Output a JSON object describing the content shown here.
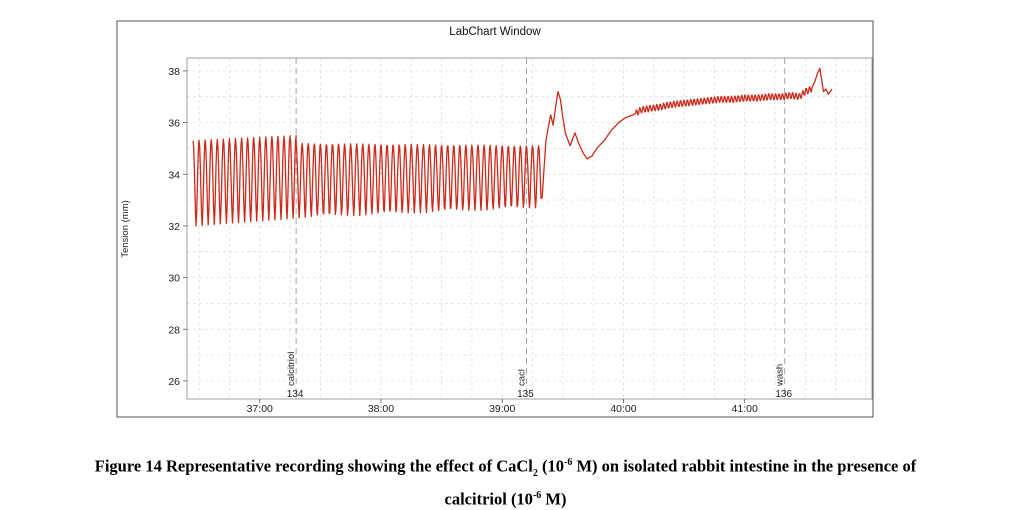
{
  "chart_data": {
    "type": "line",
    "window_title": "LabChart Window",
    "ylabel": "Tension (mm)",
    "xlabel": "",
    "ylim": [
      25.3,
      38.5
    ],
    "xlim": [
      36.4,
      42.05
    ],
    "yticks": [
      26,
      28,
      30,
      32,
      34,
      36,
      38
    ],
    "xticks": [
      37,
      38,
      39,
      40,
      41
    ],
    "xtick_labels": [
      "37:00",
      "38:00",
      "39:00",
      "40:00",
      "41:00"
    ],
    "grid": true,
    "line_color": "#cc2a1a",
    "comments": [
      {
        "x": 37.3,
        "label": "calcitriol",
        "number": "134"
      },
      {
        "x": 39.2,
        "label": "cacl",
        "number": "135"
      },
      {
        "x": 41.33,
        "label": "wash",
        "number": "136"
      }
    ],
    "series": [
      {
        "segments": [
          {
            "x_start": 36.45,
            "x_end": 37.3,
            "period": 0.05,
            "low_start": 32.0,
            "low_end": 32.3,
            "high_start": 35.3,
            "high_end": 35.5
          },
          {
            "x_start": 37.3,
            "x_end": 39.32,
            "period": 0.05,
            "low_start": 32.3,
            "low_end": 32.7,
            "high_start": 35.2,
            "high_end": 35.1
          }
        ],
        "points": [
          [
            39.33,
            33.1
          ],
          [
            39.36,
            35.3
          ],
          [
            39.38,
            35.8
          ],
          [
            39.4,
            36.3
          ],
          [
            39.42,
            35.9
          ],
          [
            39.44,
            36.6
          ],
          [
            39.46,
            37.2
          ],
          [
            39.48,
            36.9
          ],
          [
            39.5,
            36.2
          ],
          [
            39.52,
            35.6
          ],
          [
            39.56,
            35.1
          ],
          [
            39.6,
            35.6
          ],
          [
            39.63,
            35.2
          ],
          [
            39.67,
            34.8
          ],
          [
            39.7,
            34.6
          ],
          [
            39.74,
            34.7
          ],
          [
            39.78,
            35.0
          ],
          [
            39.84,
            35.3
          ],
          [
            39.9,
            35.7
          ],
          [
            39.96,
            36.0
          ],
          [
            40.02,
            36.2
          ],
          [
            40.08,
            36.3
          ],
          [
            40.15,
            36.5
          ],
          [
            40.22,
            36.55
          ],
          [
            40.3,
            36.6
          ],
          [
            40.4,
            36.7
          ],
          [
            40.5,
            36.75
          ],
          [
            40.6,
            36.8
          ],
          [
            40.7,
            36.85
          ],
          [
            40.8,
            36.9
          ],
          [
            40.9,
            36.9
          ],
          [
            41.0,
            36.95
          ],
          [
            41.1,
            36.95
          ],
          [
            41.2,
            37.0
          ],
          [
            41.3,
            37.0
          ],
          [
            41.38,
            37.05
          ],
          [
            41.45,
            37.0
          ],
          [
            41.5,
            37.2
          ],
          [
            41.55,
            37.3
          ],
          [
            41.58,
            37.6
          ],
          [
            41.6,
            37.9
          ],
          [
            41.62,
            38.1
          ],
          [
            41.64,
            37.5
          ],
          [
            41.65,
            37.2
          ],
          [
            41.67,
            37.3
          ],
          [
            41.69,
            37.1
          ],
          [
            41.72,
            37.3
          ]
        ],
        "ripple_region": [
          40.1,
          41.55
        ],
        "ripple_amplitude": 0.12,
        "ripple_period": 0.028
      }
    ]
  },
  "caption": {
    "line1_a": "Figure 14 Representative recording showing the effect of CaCl",
    "line1_sub": "2",
    "line1_b": " (10",
    "line1_sup": "-6",
    "line1_c": " M) on isolated rabbit intestine in the presence of",
    "line2_a": "calcitriol (10",
    "line2_sup": "-6",
    "line2_c": " M)"
  }
}
